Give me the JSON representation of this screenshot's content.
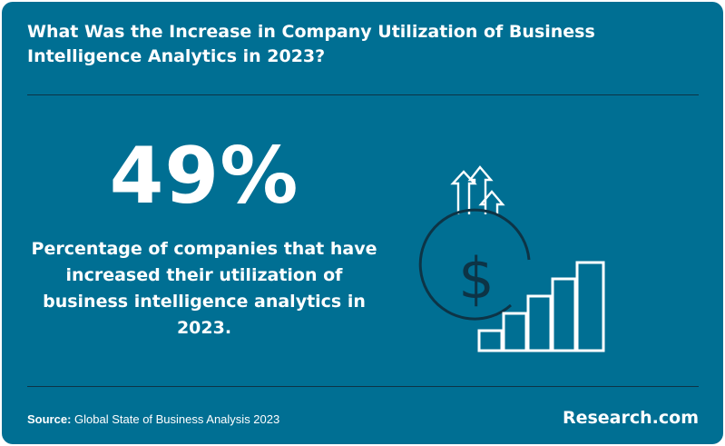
{
  "title": "What Was the Increase in Company Utilization of Business Intelligence Analytics in 2023?",
  "stat": {
    "value": "49%",
    "description": "Percentage of companies that have increased their utilization of business intelligence analytics in 2023."
  },
  "illustration": {
    "icons": [
      "up-arrows-icon",
      "dollar-coin-icon",
      "rising-bars-icon"
    ]
  },
  "footer": {
    "source_label": "Source:",
    "source_text": "Global State of Business Analysis 2023",
    "brand": "Research.com"
  },
  "colors": {
    "background": "#006f93",
    "text": "#ffffff",
    "rule": "#0d3446",
    "coin": "#0d3446"
  }
}
